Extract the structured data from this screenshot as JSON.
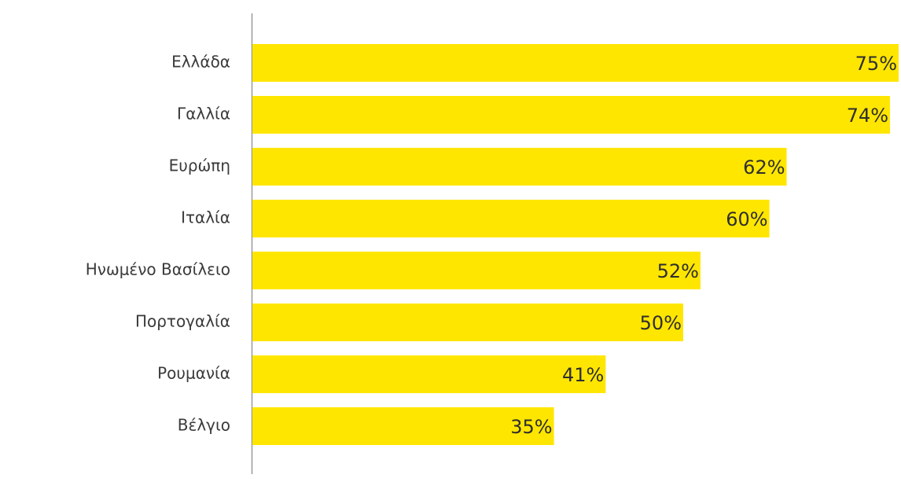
{
  "chart_data": {
    "type": "barh",
    "categories": [
      "Ελλάδα",
      "Γαλλία",
      "Ευρώπη",
      "Ιταλία",
      "Ηνωμένο Βασίλειο",
      "Πορτογαλία",
      "Ρουμανία",
      "Βέλγιο"
    ],
    "values": [
      75,
      74,
      62,
      60,
      52,
      50,
      41,
      35
    ],
    "value_labels": [
      "75%",
      "74%",
      "62%",
      "60%",
      "52%",
      "50%",
      "41%",
      "35%"
    ],
    "color": "#ffe600"
  }
}
